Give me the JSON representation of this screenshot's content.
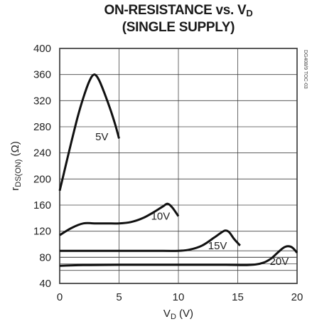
{
  "chart_data": {
    "type": "line",
    "title_main": "ON-RESISTANCE vs. V",
    "title_sub": "D",
    "subtitle": "(SINGLE SUPPLY)",
    "xlabel_main": "V",
    "xlabel_sub": "D",
    "xlabel_unit": " (V)",
    "ylabel_main": "r",
    "ylabel_sub": "DS(ON)",
    "ylabel_unit": " (Ω)",
    "xlim": [
      0,
      20
    ],
    "ylim": [
      40,
      400
    ],
    "xticks": [
      "0",
      "5",
      "10",
      "15",
      "20"
    ],
    "yticks": [
      "40",
      "80",
      "120",
      "160",
      "200",
      "240",
      "280",
      "320",
      "360",
      "400"
    ],
    "extra_hlines": [
      90,
      60,
      70,
      80
    ],
    "grid": true,
    "figure_code": "DG408/9 TOC-03",
    "series": [
      {
        "name": "5V",
        "label_at": [
          3.0,
          265
        ],
        "points": [
          [
            0,
            182
          ],
          [
            0.5,
            220
          ],
          [
            1.0,
            258
          ],
          [
            1.5,
            294
          ],
          [
            2.0,
            325
          ],
          [
            2.5,
            350
          ],
          [
            2.9,
            360
          ],
          [
            3.3,
            352
          ],
          [
            3.8,
            330
          ],
          [
            4.3,
            305
          ],
          [
            4.7,
            282
          ],
          [
            5.0,
            262
          ]
        ]
      },
      {
        "name": "10V",
        "label_at": [
          7.7,
          143
        ],
        "points": [
          [
            0,
            114
          ],
          [
            1.0,
            125
          ],
          [
            2.0,
            132
          ],
          [
            3.0,
            132
          ],
          [
            4.0,
            132
          ],
          [
            5.0,
            132
          ],
          [
            6.0,
            134
          ],
          [
            7.0,
            140
          ],
          [
            8.0,
            150
          ],
          [
            8.7,
            158
          ],
          [
            9.1,
            162
          ],
          [
            9.5,
            156
          ],
          [
            10.0,
            143
          ]
        ]
      },
      {
        "name": "15V",
        "label_at": [
          12.5,
          98
        ],
        "points": [
          [
            0,
            90
          ],
          [
            2,
            90
          ],
          [
            4,
            90
          ],
          [
            6,
            90
          ],
          [
            8,
            90
          ],
          [
            10,
            90
          ],
          [
            11,
            92
          ],
          [
            12,
            98
          ],
          [
            13,
            110
          ],
          [
            13.7,
            119
          ],
          [
            14.0,
            121
          ],
          [
            14.3,
            118
          ],
          [
            14.7,
            108
          ],
          [
            15.2,
            98
          ]
        ]
      },
      {
        "name": "20V",
        "label_at": [
          17.7,
          74
        ],
        "points": [
          [
            0,
            67
          ],
          [
            2,
            68
          ],
          [
            5,
            68.5
          ],
          [
            10,
            68.5
          ],
          [
            14,
            68.5
          ],
          [
            15.5,
            68
          ],
          [
            16.5,
            69
          ],
          [
            17.2,
            72
          ],
          [
            17.8,
            78
          ],
          [
            18.3,
            86
          ],
          [
            18.8,
            94
          ],
          [
            19.2,
            97
          ],
          [
            19.6,
            95
          ],
          [
            20.0,
            87
          ]
        ]
      }
    ]
  }
}
